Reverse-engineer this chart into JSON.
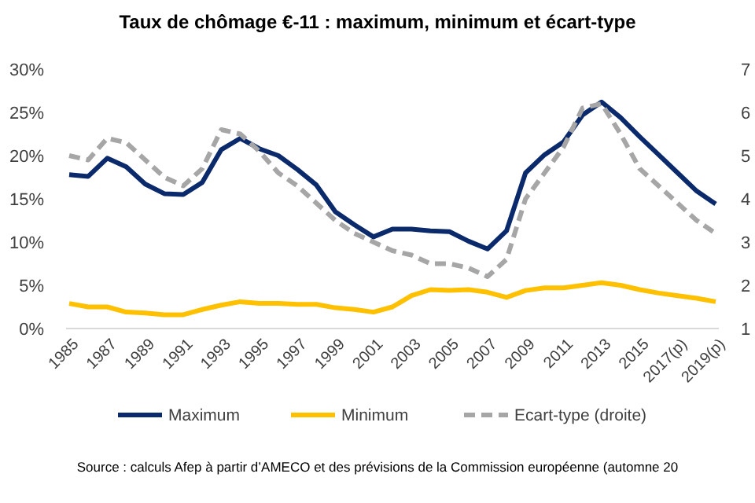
{
  "chart_data": {
    "type": "line",
    "title": "Taux de chômage €-11 : maximum, minimum et écart-type",
    "categories": [
      "1985",
      null,
      "1987",
      null,
      "1989",
      null,
      "1991",
      null,
      "1993",
      null,
      "1995",
      null,
      "1997",
      null,
      "1999",
      null,
      "2001",
      null,
      "2003",
      null,
      "2005",
      null,
      "2007",
      null,
      "2009",
      null,
      "2011",
      null,
      "2013",
      null,
      "2015",
      null,
      "2017(p)",
      null,
      "2019(p)"
    ],
    "series": [
      {
        "name": "Maximum",
        "color": "#0b2a6b",
        "line_style": "solid",
        "values": [
          17.8,
          17.6,
          19.7,
          18.7,
          16.7,
          15.6,
          15.5,
          16.9,
          20.7,
          22.0,
          20.8,
          20.0,
          18.4,
          16.6,
          13.5,
          12.0,
          10.6,
          11.5,
          11.5,
          11.3,
          11.2,
          10.1,
          9.2,
          11.3,
          18.0,
          20.1,
          21.6,
          24.7,
          26.2,
          24.4,
          22.2,
          20.1,
          18.0,
          15.9,
          14.4
        ]
      },
      {
        "name": "Minimum",
        "color": "#ffc000",
        "line_style": "solid",
        "values": [
          2.9,
          2.5,
          2.5,
          1.9,
          1.8,
          1.6,
          1.6,
          2.2,
          2.7,
          3.1,
          2.9,
          2.9,
          2.8,
          2.8,
          2.4,
          2.2,
          1.9,
          2.5,
          3.8,
          4.5,
          4.4,
          4.5,
          4.2,
          3.6,
          4.4,
          4.7,
          4.7,
          5.0,
          5.3,
          5.0,
          4.5,
          4.1,
          3.8,
          3.5,
          3.1
        ]
      },
      {
        "name": "Ecart-type (droite)",
        "color": "#a6a6a6",
        "line_style": "dashed",
        "axis": "y2",
        "values": [
          5.0,
          4.9,
          5.4,
          5.3,
          4.9,
          4.5,
          4.3,
          4.7,
          5.6,
          5.5,
          5.1,
          4.6,
          4.3,
          3.9,
          3.5,
          3.2,
          3.0,
          2.8,
          2.7,
          2.5,
          2.5,
          2.4,
          2.2,
          2.6,
          4.0,
          4.6,
          5.2,
          6.1,
          6.2,
          5.5,
          4.7,
          4.3,
          3.9,
          3.5,
          3.2
        ]
      }
    ],
    "ylim": [
      0,
      30
    ],
    "yticks": [
      {
        "value": 0,
        "label": "0%"
      },
      {
        "value": 5,
        "label": "5%"
      },
      {
        "value": 10,
        "label": "10%"
      },
      {
        "value": 15,
        "label": "15%"
      },
      {
        "value": 20,
        "label": "20%"
      },
      {
        "value": 25,
        "label": "25%"
      },
      {
        "value": 30,
        "label": "30%"
      }
    ],
    "y2lim": [
      1,
      7
    ],
    "y2ticks": [
      1,
      2,
      3,
      4,
      5,
      6,
      7
    ],
    "grid": false,
    "legend": "bottom",
    "marker": "none",
    "annotations": [
      "Source : calculs Afep à partir d’AMECO et des prévisions de la Commission européenne (automne 20"
    ]
  }
}
